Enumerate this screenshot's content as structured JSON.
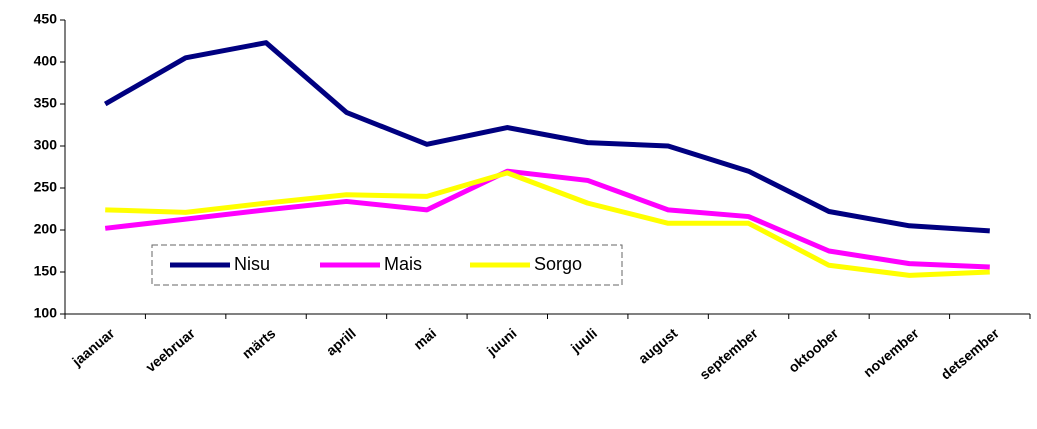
{
  "chart_data": {
    "type": "line",
    "categories": [
      "jaanuar",
      "veebruar",
      "märts",
      "aprill",
      "mai",
      "juuni",
      "juuli",
      "august",
      "september",
      "oktoober",
      "november",
      "detsember"
    ],
    "series": [
      {
        "name": "Nisu",
        "color": "#000080",
        "values": [
          350,
          405,
          423,
          340,
          302,
          322,
          304,
          300,
          270,
          222,
          205,
          199
        ]
      },
      {
        "name": "Mais",
        "color": "#ff00ff",
        "values": [
          202,
          213,
          224,
          234,
          224,
          270,
          259,
          224,
          216,
          175,
          160,
          156
        ]
      },
      {
        "name": "Sorgo",
        "color": "#ffff00",
        "values": [
          224,
          221,
          232,
          242,
          240,
          268,
          232,
          208,
          208,
          158,
          146,
          150
        ]
      }
    ],
    "ylim": [
      100,
      450
    ],
    "yticks": [
      100,
      150,
      200,
      250,
      300,
      350,
      400,
      450
    ],
    "grid": false,
    "legend": "bottom-left"
  }
}
